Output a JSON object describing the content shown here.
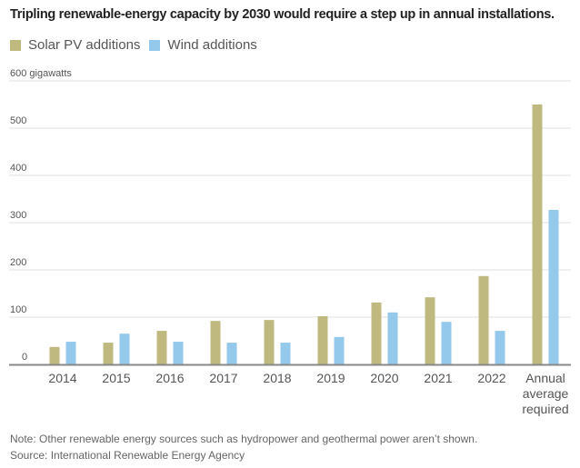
{
  "title": "Tripling renewable-energy capacity by 2030 would require a step up in annual installations.",
  "legend": [
    {
      "label": "Solar PV additions",
      "color": "#bfb97f"
    },
    {
      "label": "Wind additions",
      "color": "#94c9ec"
    }
  ],
  "note": "Note: Other renewable energy sources such as hydropower and geothermal power aren’t shown.",
  "source": "Source: International Renewable Energy Agency",
  "chart_data": {
    "type": "bar",
    "title": "Tripling renewable-energy capacity by 2030 would require a step up in annual installations.",
    "xlabel": "",
    "ylabel": "gigawatts",
    "ylim": [
      0,
      600
    ],
    "yticks": [
      0,
      100,
      200,
      300,
      400,
      500,
      600
    ],
    "ytick_labels": [
      "0",
      "100",
      "200",
      "300",
      "400",
      "500",
      "600 gigawatts"
    ],
    "grid": true,
    "legend_position": "top-left",
    "categories": [
      "2014",
      "2015",
      "2016",
      "2017",
      "2018",
      "2019",
      "2020",
      "2021",
      "2022",
      "Annual average required"
    ],
    "category_label_lines": [
      [
        "2014"
      ],
      [
        "2015"
      ],
      [
        "2016"
      ],
      [
        "2017"
      ],
      [
        "2018"
      ],
      [
        "2019"
      ],
      [
        "2020"
      ],
      [
        "2021"
      ],
      [
        "2022"
      ],
      [
        "Annual",
        "average",
        "required"
      ]
    ],
    "series": [
      {
        "name": "Solar PV additions",
        "color": "#bfb97f",
        "values": [
          37,
          46,
          71,
          92,
          94,
          102,
          131,
          142,
          187,
          550
        ]
      },
      {
        "name": "Wind additions",
        "color": "#94c9ec",
        "values": [
          48,
          65,
          48,
          46,
          46,
          58,
          110,
          90,
          71,
          327
        ]
      }
    ]
  }
}
